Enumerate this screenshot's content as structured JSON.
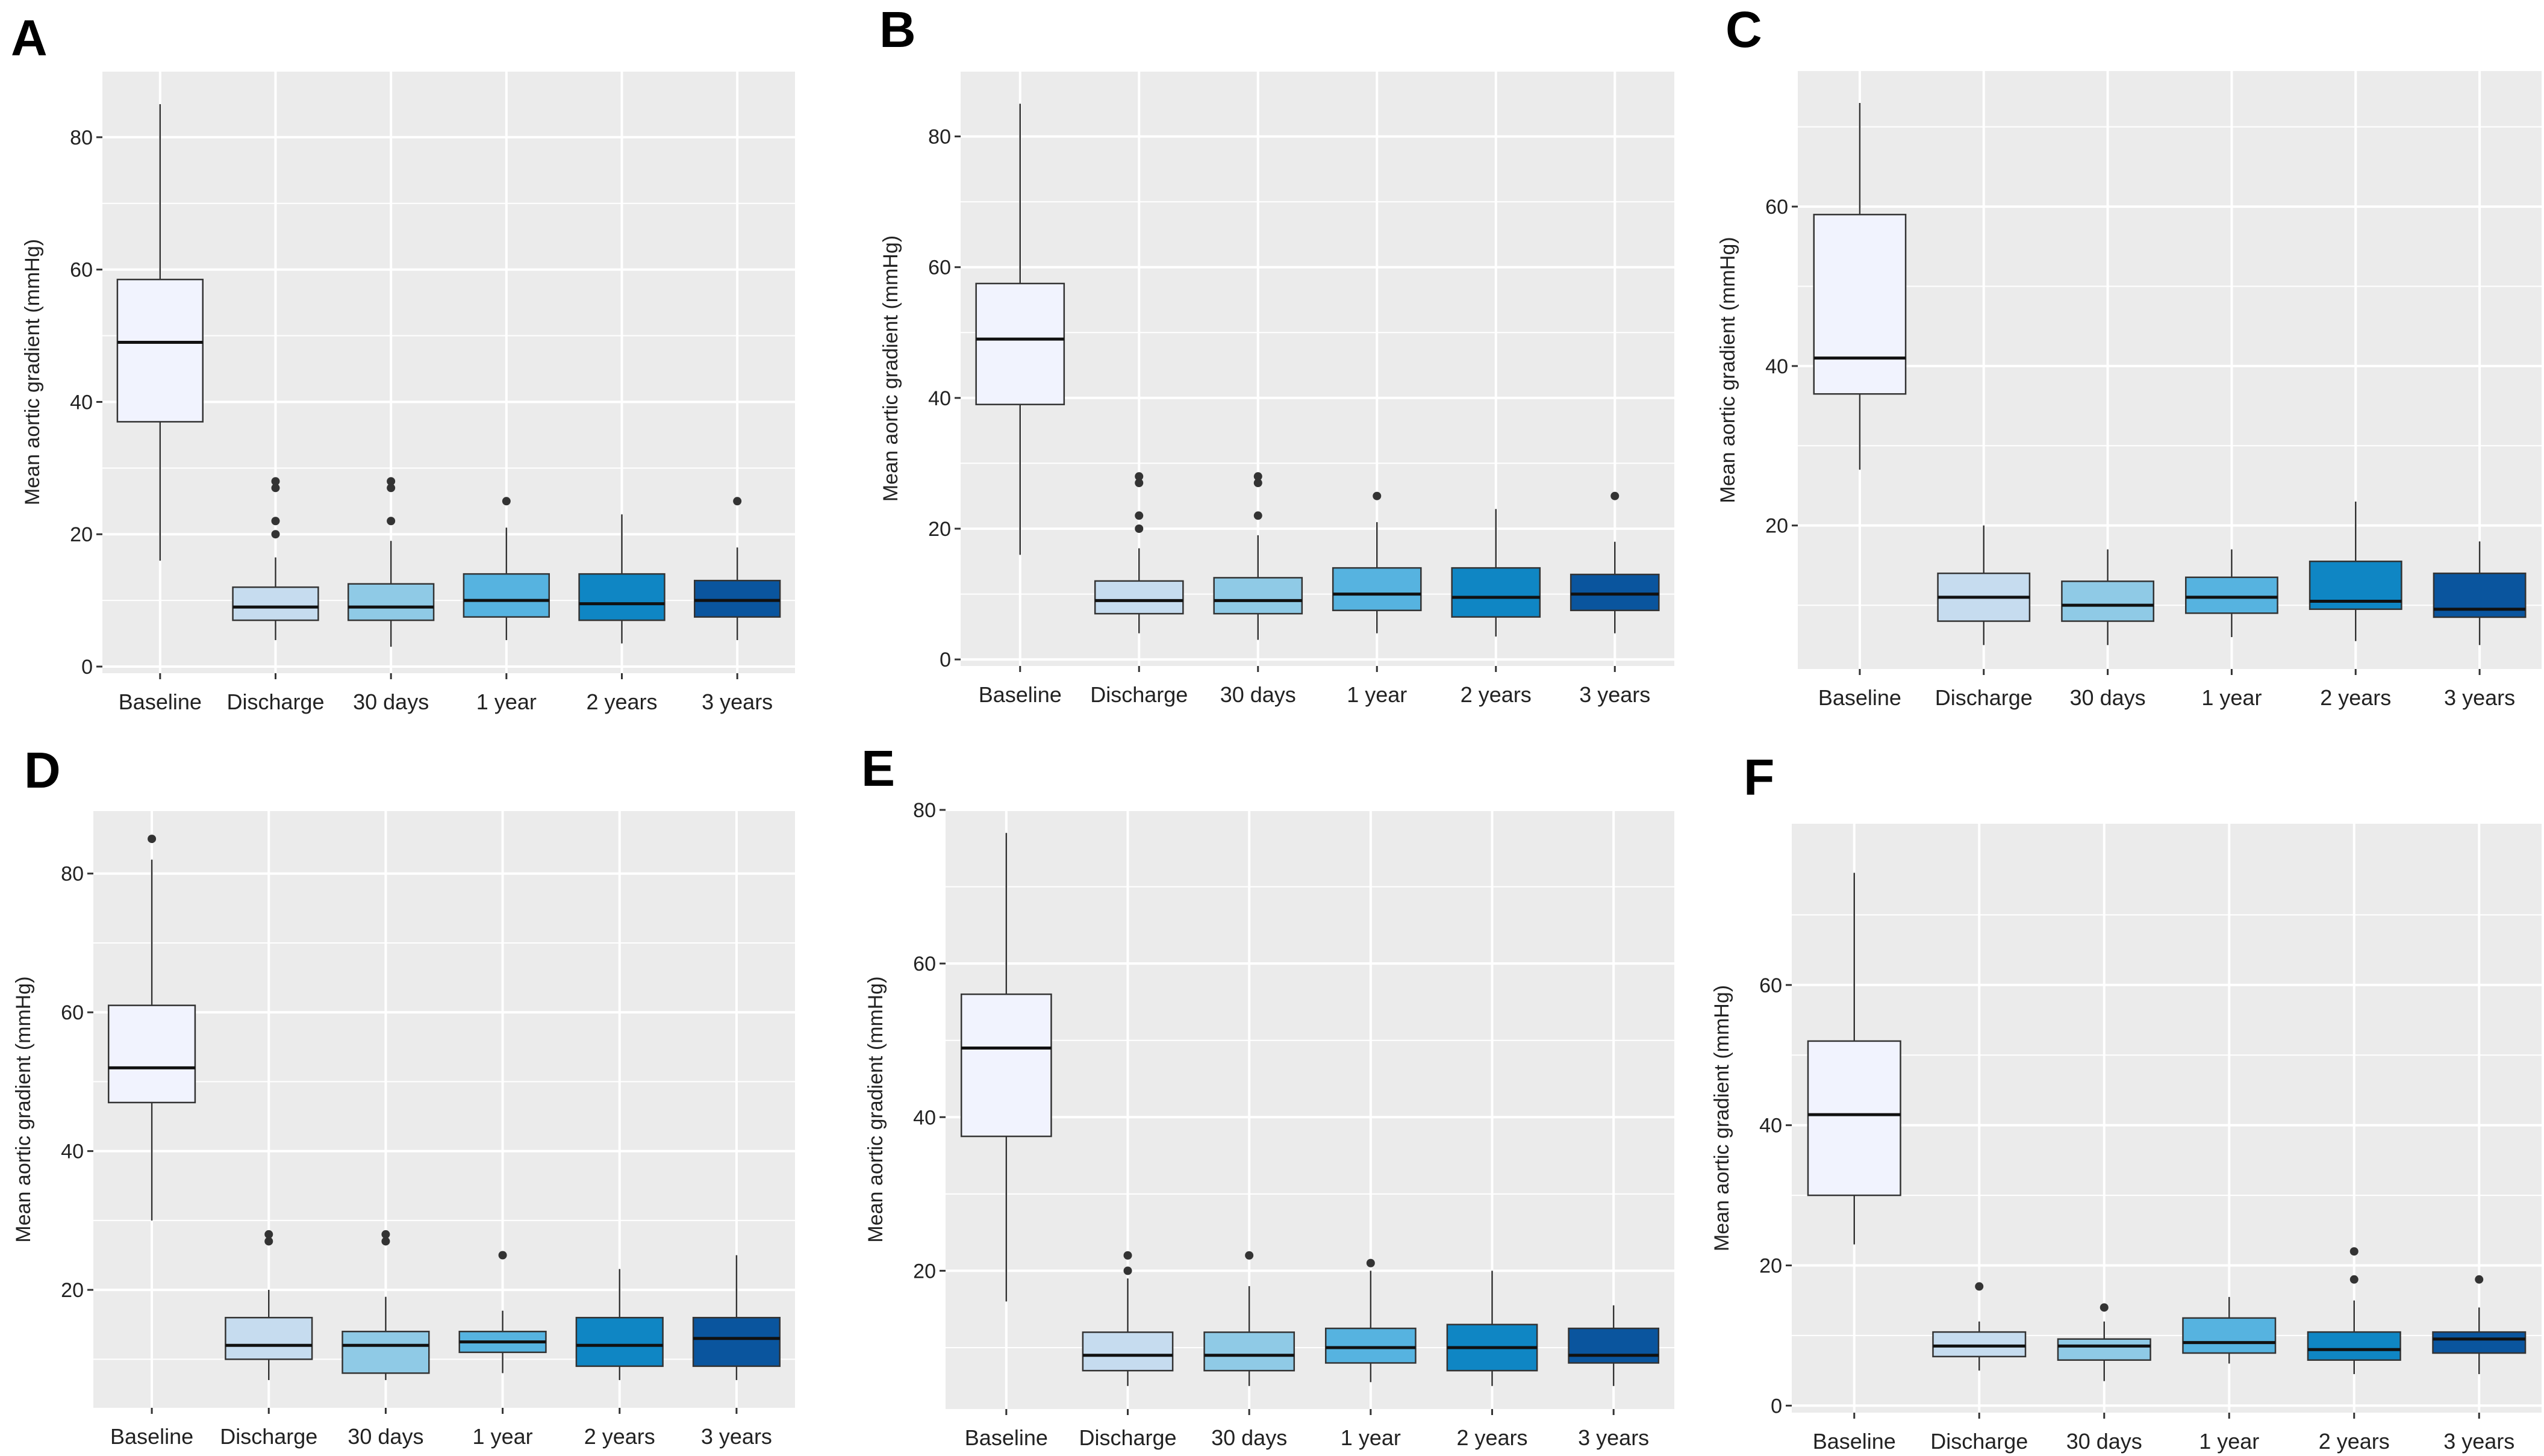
{
  "figure": {
    "category_colors": [
      "#f1f3fe",
      "#c6dcef",
      "#8fcae6",
      "#56b3e0",
      "#0f86c4",
      "#0a559e"
    ],
    "panel_background": "#ebebeb",
    "grid_color": "#ffffff"
  },
  "chart_data": [
    {
      "panel": "A",
      "type": "box",
      "ylabel": "Mean aortic gradient (mmHg)",
      "xlabel": "",
      "categories": [
        "Baseline",
        "Discharge",
        "30 days",
        "1 year",
        "2 years",
        "3 years"
      ],
      "ylim": [
        -1,
        90
      ],
      "yticks": [
        0,
        20,
        40,
        60,
        80
      ],
      "boxes": [
        {
          "whislo": 16,
          "q1": 37,
          "med": 49,
          "q3": 58.5,
          "whishi": 85,
          "fliers": []
        },
        {
          "whislo": 4,
          "q1": 7,
          "med": 9,
          "q3": 12,
          "whishi": 16.5,
          "fliers": [
            20,
            22,
            27,
            28
          ]
        },
        {
          "whislo": 3,
          "q1": 7,
          "med": 9,
          "q3": 12.5,
          "whishi": 19,
          "fliers": [
            22,
            27,
            28
          ]
        },
        {
          "whislo": 4,
          "q1": 7.5,
          "med": 10,
          "q3": 14,
          "whishi": 21,
          "fliers": [
            25
          ]
        },
        {
          "whislo": 3.5,
          "q1": 7,
          "med": 9.5,
          "q3": 14,
          "whishi": 23,
          "fliers": []
        },
        {
          "whislo": 4,
          "q1": 7.5,
          "med": 10,
          "q3": 13,
          "whishi": 18,
          "fliers": [
            25
          ]
        }
      ]
    },
    {
      "panel": "B",
      "type": "box",
      "ylabel": "Mean aortic gradient (mmHg)",
      "xlabel": "",
      "categories": [
        "Baseline",
        "Discharge",
        "30 days",
        "1 year",
        "2 years",
        "3 years"
      ],
      "ylim": [
        -1,
        90
      ],
      "yticks": [
        0,
        20,
        40,
        60,
        80
      ],
      "boxes": [
        {
          "whislo": 16,
          "q1": 39,
          "med": 49,
          "q3": 57.5,
          "whishi": 85,
          "fliers": []
        },
        {
          "whislo": 4,
          "q1": 7,
          "med": 9,
          "q3": 12,
          "whishi": 17,
          "fliers": [
            20,
            22,
            27,
            28
          ]
        },
        {
          "whislo": 3,
          "q1": 7,
          "med": 9,
          "q3": 12.5,
          "whishi": 19,
          "fliers": [
            22,
            27,
            28
          ]
        },
        {
          "whislo": 4,
          "q1": 7.5,
          "med": 10,
          "q3": 14,
          "whishi": 21,
          "fliers": [
            25
          ]
        },
        {
          "whislo": 3.5,
          "q1": 6.5,
          "med": 9.5,
          "q3": 14,
          "whishi": 23,
          "fliers": []
        },
        {
          "whislo": 4,
          "q1": 7.5,
          "med": 10,
          "q3": 13,
          "whishi": 18,
          "fliers": [
            25
          ]
        }
      ]
    },
    {
      "panel": "C",
      "type": "box",
      "ylabel": "Mean aortic gradient (mmHg)",
      "xlabel": "",
      "categories": [
        "Baseline",
        "Discharge",
        "30 days",
        "1 year",
        "2 years",
        "3 years"
      ],
      "ylim": [
        2,
        77
      ],
      "yticks": [
        20,
        40,
        60
      ],
      "boxes": [
        {
          "whislo": 27,
          "q1": 36.5,
          "med": 41,
          "q3": 59,
          "whishi": 73,
          "fliers": []
        },
        {
          "whislo": 5,
          "q1": 8,
          "med": 11,
          "q3": 14,
          "whishi": 20,
          "fliers": []
        },
        {
          "whislo": 5,
          "q1": 8,
          "med": 10,
          "q3": 13,
          "whishi": 17,
          "fliers": []
        },
        {
          "whislo": 6,
          "q1": 9,
          "med": 11,
          "q3": 13.5,
          "whishi": 17,
          "fliers": []
        },
        {
          "whislo": 5.5,
          "q1": 9.5,
          "med": 10.5,
          "q3": 15.5,
          "whishi": 23,
          "fliers": []
        },
        {
          "whislo": 5,
          "q1": 8.5,
          "med": 9.5,
          "q3": 14,
          "whishi": 18,
          "fliers": []
        }
      ]
    },
    {
      "panel": "D",
      "type": "box",
      "ylabel": "Mean aortic gradient (mmHg)",
      "xlabel": "",
      "categories": [
        "Baseline",
        "Discharge",
        "30 days",
        "1 year",
        "2 years",
        "3 years"
      ],
      "ylim": [
        3,
        89
      ],
      "yticks": [
        20,
        40,
        60,
        80
      ],
      "boxes": [
        {
          "whislo": 30,
          "q1": 47,
          "med": 52,
          "q3": 61,
          "whishi": 82,
          "fliers": [
            85
          ]
        },
        {
          "whislo": 7,
          "q1": 10,
          "med": 12,
          "q3": 16,
          "whishi": 20,
          "fliers": [
            27,
            28
          ]
        },
        {
          "whislo": 7,
          "q1": 8,
          "med": 12,
          "q3": 14,
          "whishi": 19,
          "fliers": [
            27,
            28
          ]
        },
        {
          "whislo": 8,
          "q1": 11,
          "med": 12.5,
          "q3": 14,
          "whishi": 17,
          "fliers": [
            25
          ]
        },
        {
          "whislo": 7,
          "q1": 9,
          "med": 12,
          "q3": 16,
          "whishi": 23,
          "fliers": []
        },
        {
          "whislo": 7,
          "q1": 9,
          "med": 13,
          "q3": 16,
          "whishi": 25,
          "fliers": []
        }
      ]
    },
    {
      "panel": "E",
      "type": "box",
      "ylabel": "Mean aortic gradient (mmHg)",
      "xlabel": "",
      "categories": [
        "Baseline",
        "Discharge",
        "30 days",
        "1 year",
        "2 years",
        "3 years"
      ],
      "ylim": [
        2,
        80
      ],
      "yticks": [
        20,
        40,
        60,
        80
      ],
      "boxes": [
        {
          "whislo": 16,
          "q1": 37.5,
          "med": 49,
          "q3": 56,
          "whishi": 77,
          "fliers": []
        },
        {
          "whislo": 5,
          "q1": 7,
          "med": 9,
          "q3": 12,
          "whishi": 19,
          "fliers": [
            20,
            22
          ]
        },
        {
          "whislo": 5,
          "q1": 7,
          "med": 9,
          "q3": 12,
          "whishi": 18,
          "fliers": [
            22
          ]
        },
        {
          "whislo": 5.5,
          "q1": 8,
          "med": 10,
          "q3": 12.5,
          "whishi": 20,
          "fliers": [
            21
          ]
        },
        {
          "whislo": 5,
          "q1": 7,
          "med": 10,
          "q3": 13,
          "whishi": 20,
          "fliers": []
        },
        {
          "whislo": 5,
          "q1": 8,
          "med": 9,
          "q3": 12.5,
          "whishi": 15.5,
          "fliers": []
        }
      ]
    },
    {
      "panel": "F",
      "type": "box",
      "ylabel": "Mean aortic gradient (mmHg)",
      "xlabel": "",
      "categories": [
        "Baseline",
        "Discharge",
        "30 days",
        "1 year",
        "2 years",
        "3 years"
      ],
      "ylim": [
        -1,
        83
      ],
      "yticks": [
        0,
        20,
        40,
        60
      ],
      "boxes": [
        {
          "whislo": 23,
          "q1": 30,
          "med": 41.5,
          "q3": 52,
          "whishi": 76,
          "fliers": []
        },
        {
          "whislo": 5,
          "q1": 7,
          "med": 8.5,
          "q3": 10.5,
          "whishi": 12,
          "fliers": [
            17
          ]
        },
        {
          "whislo": 3.5,
          "q1": 6.5,
          "med": 8.5,
          "q3": 9.5,
          "whishi": 12,
          "fliers": [
            14
          ]
        },
        {
          "whislo": 6,
          "q1": 7.5,
          "med": 9,
          "q3": 12.5,
          "whishi": 15.5,
          "fliers": []
        },
        {
          "whislo": 4.5,
          "q1": 6.5,
          "med": 8,
          "q3": 10.5,
          "whishi": 15,
          "fliers": [
            18,
            22
          ]
        },
        {
          "whislo": 4.5,
          "q1": 7.5,
          "med": 9.5,
          "q3": 10.5,
          "whishi": 14,
          "fliers": [
            18
          ]
        }
      ]
    }
  ]
}
